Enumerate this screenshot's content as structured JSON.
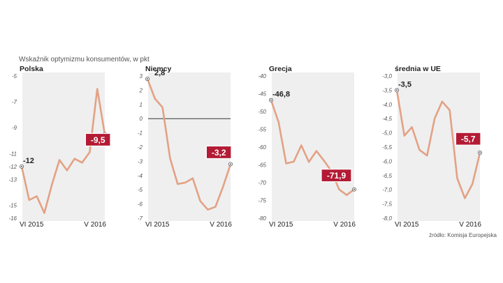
{
  "subtitle": "Wskaźnik optymizmu konsumentów, w pkt",
  "source": "źródło: Komisja Europejska",
  "colors": {
    "line": "#e3a185",
    "badge": "#b31b34",
    "panel_bg": "#efefef"
  },
  "chart_data": [
    {
      "type": "line",
      "title": "Polska",
      "ylim": [
        -16,
        -5
      ],
      "y_ticks": [
        -5,
        -7,
        -9,
        -11,
        -12,
        -13,
        -15,
        -16
      ],
      "y_tick_labels": [
        "-5",
        "-7",
        "-9",
        "-11",
        "-12",
        "-13",
        "-15",
        "-16"
      ],
      "x_labels": [
        "VI 2015",
        "V 2016"
      ],
      "values": [
        -12.0,
        -14.6,
        -14.3,
        -15.6,
        -13.4,
        -11.5,
        -12.3,
        -11.4,
        -11.7,
        -10.9,
        -6.0,
        -9.5
      ],
      "start_label": "-12",
      "end_label": "-9,5",
      "zero_line": false
    },
    {
      "type": "line",
      "title": "Niemcy",
      "ylim": [
        -7,
        3
      ],
      "y_ticks": [
        3,
        2,
        1,
        0,
        -1,
        -2,
        -3,
        -4,
        -5,
        -6,
        -7
      ],
      "y_tick_labels": [
        "3",
        "2",
        "1",
        "0",
        "-1",
        "-2",
        "-3",
        "-4",
        "-5",
        "-6",
        "-7"
      ],
      "x_labels": [
        "VI 2015",
        "V 2016"
      ],
      "values": [
        2.8,
        1.4,
        0.8,
        -2.8,
        -4.6,
        -4.5,
        -4.2,
        -5.8,
        -6.4,
        -6.2,
        -4.8,
        -3.2
      ],
      "start_label": "2,8",
      "end_label": "-3,2",
      "zero_line": true
    },
    {
      "type": "line",
      "title": "Grecja",
      "ylim": [
        -80,
        -40
      ],
      "y_ticks": [
        -40,
        -45,
        -50,
        -55,
        -60,
        -65,
        -70,
        -75,
        -80
      ],
      "y_tick_labels": [
        "-40",
        "-45",
        "-50",
        "-55",
        "-60",
        "-65",
        "-70",
        "-75",
        "-80"
      ],
      "x_labels": [
        "VI 2015",
        "V 2016"
      ],
      "values": [
        -46.8,
        -53.0,
        -64.6,
        -64.1,
        -59.5,
        -64.2,
        -61.1,
        -63.8,
        -66.8,
        -71.9,
        -73.5,
        -71.9
      ],
      "start_label": "-46,8",
      "end_label": "-71,9",
      "zero_line": false
    },
    {
      "type": "line",
      "title": "średnia w UE",
      "ylim": [
        -8.0,
        -3.0
      ],
      "y_ticks": [
        -3.0,
        -3.5,
        -4.0,
        -4.5,
        -5.0,
        -5.5,
        -6.0,
        -6.5,
        -7.0,
        -7.5,
        -8.0
      ],
      "y_tick_labels": [
        "-3,0",
        "-3,5",
        "-4,0",
        "-4,5",
        "-5,0",
        "-5,5",
        "-6,0",
        "-6,5",
        "-7,0",
        "-7,5",
        "-8,0"
      ],
      "x_labels": [
        "VI 2015",
        "V 2016"
      ],
      "values": [
        -3.5,
        -5.1,
        -4.8,
        -5.6,
        -5.8,
        -4.5,
        -3.9,
        -4.2,
        -6.6,
        -7.3,
        -6.8,
        -5.7
      ],
      "start_label": "-3,5",
      "end_label": "-5,7",
      "zero_line": false
    }
  ]
}
